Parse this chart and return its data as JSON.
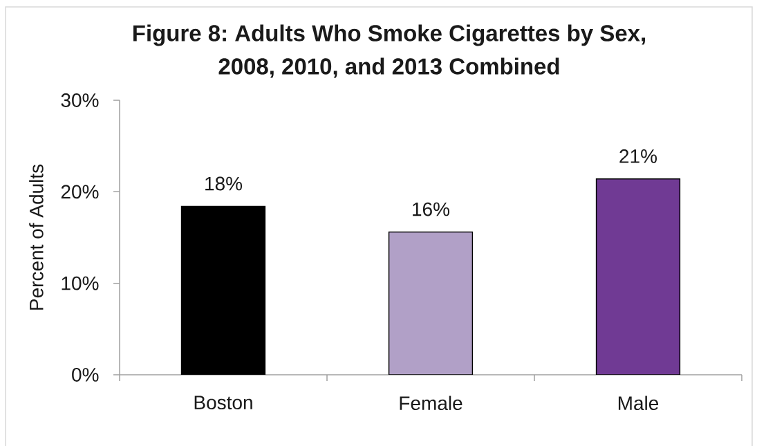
{
  "chart_data": {
    "type": "bar",
    "title": "Figure 8: Adults Who Smoke Cigarettes by Sex, 2008, 2010, and 2013 Combined",
    "ylabel": "Percent of Adults",
    "categories": [
      "Boston",
      "Female",
      "Male"
    ],
    "values": [
      18.4,
      15.6,
      21.4
    ],
    "colors": [
      "#000000",
      "#b1a0c7",
      "#703a94"
    ],
    "value_labels": [
      "18%",
      "16%",
      "21%"
    ],
    "ylim": [
      0,
      30
    ],
    "yticks": [
      {
        "value": 0,
        "label": "0%"
      },
      {
        "value": 10,
        "label": "10%"
      },
      {
        "value": 20,
        "label": "20%"
      },
      {
        "value": 30,
        "label": "30%"
      }
    ]
  }
}
